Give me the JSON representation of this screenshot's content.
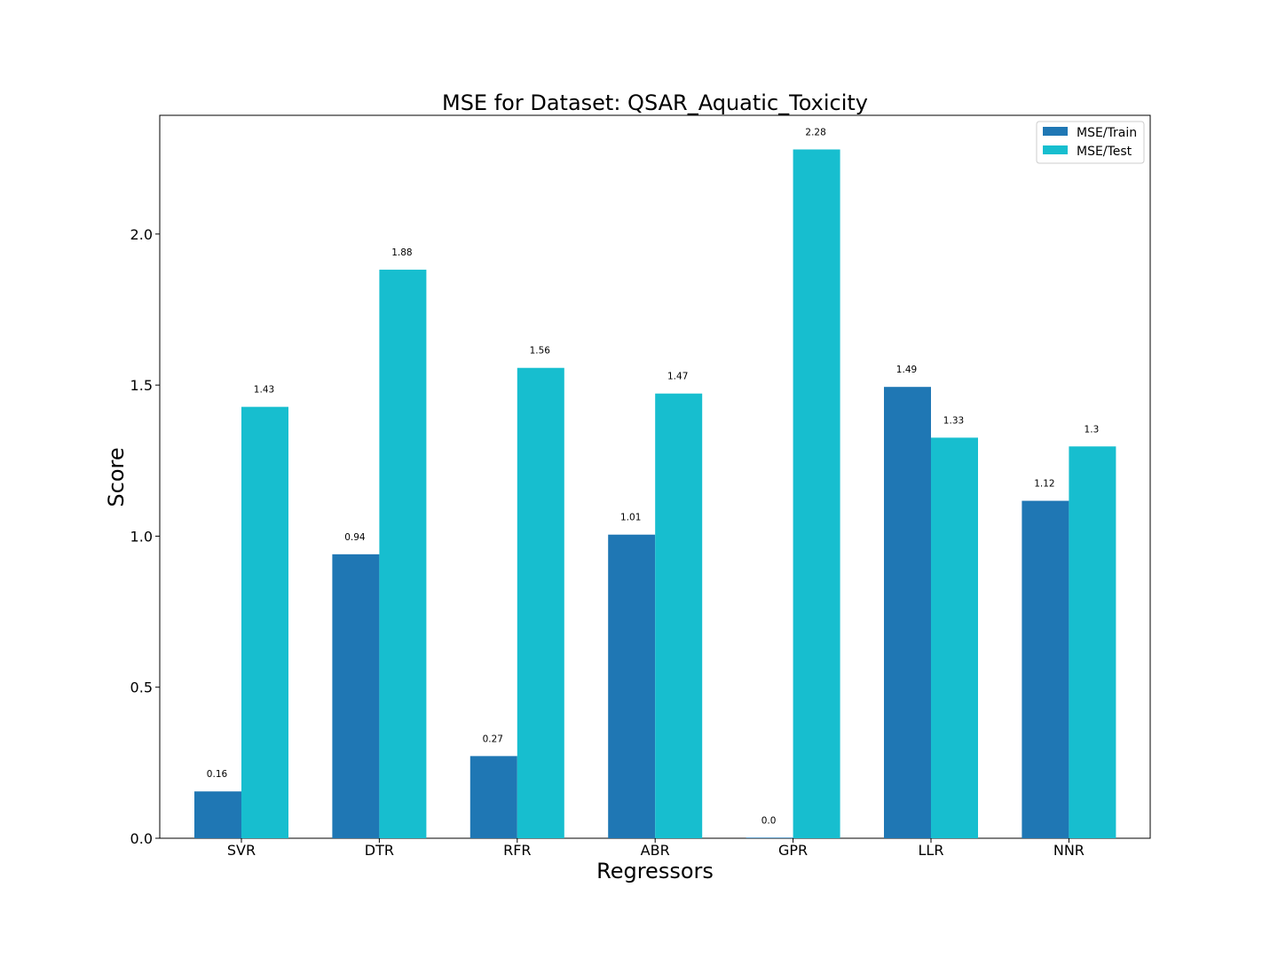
{
  "chart_data": {
    "type": "bar",
    "title": "MSE for Dataset: QSAR_Aquatic_Toxicity",
    "xlabel": "Regressors",
    "ylabel": "Score",
    "categories": [
      "SVR",
      "DTR",
      "RFR",
      "ABR",
      "GPR",
      "LLR",
      "NNR"
    ],
    "series": [
      {
        "name": "MSE/Train",
        "color": "#1f77b4",
        "values": [
          0.155,
          0.94,
          0.272,
          1.005,
          0.002,
          1.494,
          1.117
        ],
        "labels": [
          "0.16",
          "0.94",
          "0.27",
          "1.01",
          "0.0",
          "1.49",
          "1.12"
        ]
      },
      {
        "name": "MSE/Test",
        "color": "#17becf",
        "values": [
          1.428,
          1.882,
          1.557,
          1.472,
          2.28,
          1.326,
          1.297
        ],
        "labels": [
          "1.43",
          "1.88",
          "1.56",
          "1.47",
          "2.28",
          "1.33",
          "1.3"
        ]
      }
    ],
    "ylim": [
      0,
      2.393
    ],
    "yticks": [
      "0.0",
      "0.5",
      "1.0",
      "1.5",
      "2.0"
    ],
    "grid": false,
    "legend_position": "top-right"
  }
}
